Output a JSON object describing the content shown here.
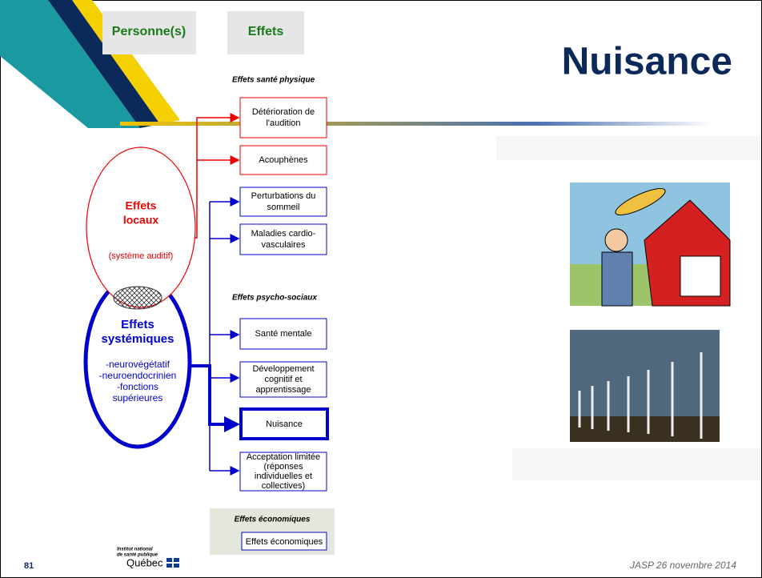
{
  "header": {
    "columns": [
      "Personne(s)",
      "Effets"
    ],
    "title": "Nuisance"
  },
  "sections": {
    "physical": "Effets santé physique",
    "psychosocial": "Effets psycho-sociaux"
  },
  "effects": [
    {
      "lines": [
        "Détérioration de",
        "l'audition"
      ]
    },
    {
      "lines": [
        "Acouphènes"
      ]
    },
    {
      "lines": [
        "Perturbations du",
        "sommeil"
      ]
    },
    {
      "lines": [
        "Maladies cardio-",
        "vasculaires"
      ]
    },
    {
      "lines": [
        "Santé mentale"
      ]
    },
    {
      "lines": [
        "Développement",
        "cognitif et",
        "apprentissage"
      ]
    },
    {
      "lines": [
        "Nuisance"
      ]
    },
    {
      "lines": [
        "Acceptation limitée",
        "(réponses",
        "individuelles et",
        "collectives)"
      ]
    }
  ],
  "sources": {
    "local": {
      "title": [
        "Effets",
        "locaux"
      ],
      "detail": "(système auditif)"
    },
    "systemic": {
      "title": [
        "Effets",
        "systémiques"
      ],
      "details": [
        "-neurovégétatif",
        "-neuroendocrinien",
        "-fonctions",
        "supérieures"
      ]
    }
  },
  "economic": {
    "title": "Effets économiques",
    "item": "Effets économiques"
  },
  "footer": {
    "page": "81",
    "logo": [
      "Institut national",
      "de santé publique",
      "Québec"
    ],
    "event": "JASP 26 novembre 2014"
  }
}
